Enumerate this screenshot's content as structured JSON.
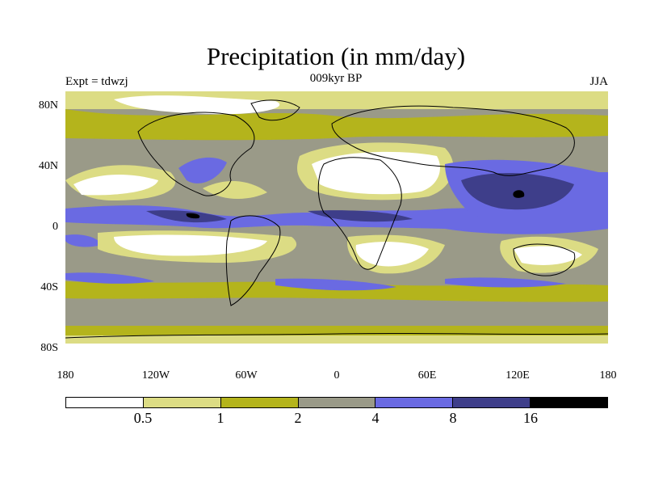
{
  "title": "Precipitation (in mm/day)",
  "left_string": "Expt = tdwzj",
  "center_string": "009kyr BP",
  "right_string": "JJA",
  "lat_labels": [
    "80N",
    "40N",
    "0",
    "40S",
    "80S"
  ],
  "lon_labels": [
    "180",
    "120W",
    "60W",
    "0",
    "60E",
    "120E",
    "180"
  ],
  "colorbar": {
    "colors": [
      "#ffffff",
      "#dcdc84",
      "#b4b41c",
      "#9a9a88",
      "#6a6ae2",
      "#3e3e8a",
      "#000000"
    ],
    "labels": [
      "0.5",
      "1",
      "2",
      "4",
      "8",
      "16"
    ]
  }
}
